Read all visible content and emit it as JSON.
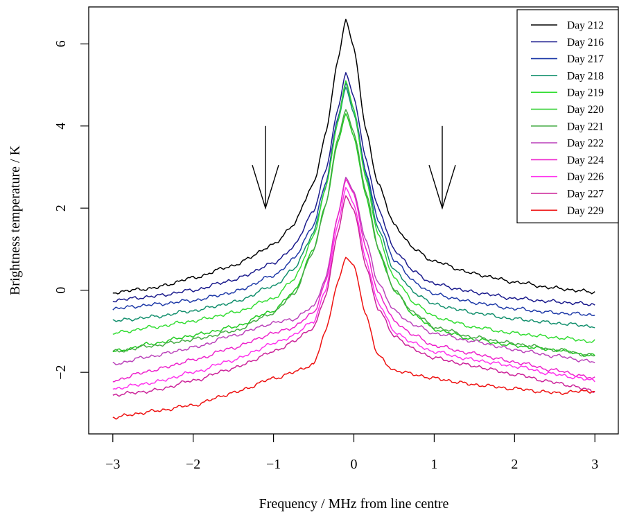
{
  "chart_data": {
    "type": "line",
    "title": "",
    "xlabel": "Frequency / MHz from line centre",
    "ylabel": "Brightness temperature / K",
    "xlim": [
      -3.3,
      3.3
    ],
    "ylim": [
      -3.5,
      6.9
    ],
    "xticks": [
      -3,
      -2,
      -1,
      0,
      1,
      2,
      3
    ],
    "xtick_labels": [
      "−3",
      "−2",
      "−1",
      "0",
      "1",
      "2",
      "3"
    ],
    "yticks": [
      -2,
      0,
      2,
      4,
      6
    ],
    "ytick_labels": [
      "−2",
      "0",
      "2",
      "4",
      "6"
    ],
    "grid": false,
    "legend_position": "top-right",
    "line_center": -0.1,
    "annotations": [
      {
        "type": "arrow",
        "direction": "down",
        "x": -1.1,
        "y_from": 4.0,
        "y_to": 2.0
      },
      {
        "type": "arrow",
        "direction": "down",
        "x": 1.1,
        "y_from": 4.0,
        "y_to": 2.0
      }
    ],
    "series": [
      {
        "name": "Day 212",
        "color": "#000000",
        "x": [
          -3,
          -2.5,
          -2,
          -1.5,
          -1,
          -0.75,
          -0.5,
          -0.35,
          -0.2,
          -0.1,
          0,
          0.15,
          0.3,
          0.5,
          0.75,
          1,
          1.5,
          2,
          2.5,
          3
        ],
        "y": [
          -0.05,
          0.05,
          0.3,
          0.6,
          1.1,
          1.6,
          2.6,
          3.8,
          5.6,
          6.6,
          5.9,
          3.9,
          2.6,
          1.6,
          1.0,
          0.7,
          0.4,
          0.2,
          0.05,
          -0.05
        ]
      },
      {
        "name": "Day 216",
        "color": "#1a1a8c",
        "x": [
          -3,
          -2.5,
          -2,
          -1.5,
          -1,
          -0.75,
          -0.5,
          -0.35,
          -0.2,
          -0.1,
          0,
          0.15,
          0.3,
          0.5,
          0.75,
          1,
          1.5,
          2,
          2.5,
          3
        ],
        "y": [
          -0.25,
          -0.15,
          0.0,
          0.25,
          0.65,
          1.05,
          1.95,
          2.9,
          4.4,
          5.3,
          4.7,
          3.2,
          2.0,
          1.0,
          0.45,
          0.15,
          -0.05,
          -0.2,
          -0.28,
          -0.35
        ]
      },
      {
        "name": "Day 217",
        "color": "#1e3aa8",
        "x": [
          -3,
          -2.5,
          -2,
          -1.5,
          -1,
          -0.75,
          -0.5,
          -0.35,
          -0.2,
          -0.1,
          0,
          0.15,
          0.3,
          0.5,
          0.75,
          1,
          1.5,
          2,
          2.5,
          3
        ],
        "y": [
          -0.45,
          -0.35,
          -0.25,
          -0.05,
          0.35,
          0.75,
          1.6,
          2.6,
          4.2,
          5.05,
          4.4,
          2.9,
          1.7,
          0.75,
          0.2,
          -0.1,
          -0.3,
          -0.45,
          -0.55,
          -0.6
        ]
      },
      {
        "name": "Day 218",
        "color": "#14906e",
        "x": [
          -3,
          -2.5,
          -2,
          -1.5,
          -1,
          -0.75,
          -0.5,
          -0.35,
          -0.2,
          -0.1,
          0,
          0.15,
          0.3,
          0.5,
          0.75,
          1,
          1.5,
          2,
          2.5,
          3
        ],
        "y": [
          -0.75,
          -0.65,
          -0.5,
          -0.3,
          0.1,
          0.5,
          1.4,
          2.5,
          4.1,
          4.95,
          4.3,
          2.8,
          1.5,
          0.5,
          -0.05,
          -0.35,
          -0.55,
          -0.7,
          -0.8,
          -0.88
        ]
      },
      {
        "name": "Day 219",
        "color": "#33dd33",
        "x": [
          -3,
          -2.5,
          -2,
          -1.5,
          -1,
          -0.75,
          -0.5,
          -0.35,
          -0.2,
          -0.1,
          0,
          0.15,
          0.3,
          0.5,
          0.75,
          1,
          1.5,
          2,
          2.5,
          3
        ],
        "y": [
          -1.05,
          -0.9,
          -0.75,
          -0.55,
          -0.2,
          0.25,
          1.3,
          2.5,
          4.1,
          5.1,
          4.4,
          2.7,
          1.35,
          0.3,
          -0.3,
          -0.65,
          -0.9,
          -1.05,
          -1.15,
          -1.25
        ]
      },
      {
        "name": "Day 220",
        "color": "#22cc22",
        "x": [
          -3,
          -2.5,
          -2,
          -1.5,
          -1,
          -0.75,
          -0.5,
          -0.35,
          -0.2,
          -0.1,
          0,
          0.15,
          0.3,
          0.5,
          0.75,
          1,
          1.5,
          2,
          2.5,
          3
        ],
        "y": [
          -1.5,
          -1.3,
          -1.1,
          -0.9,
          -0.5,
          -0.05,
          1.0,
          2.1,
          3.6,
          4.3,
          3.75,
          2.3,
          1.0,
          0.0,
          -0.6,
          -0.95,
          -1.2,
          -1.35,
          -1.45,
          -1.6
        ]
      },
      {
        "name": "Day 221",
        "color": "#44aa44",
        "x": [
          -3,
          -2.5,
          -2,
          -1.5,
          -1,
          -0.75,
          -0.5,
          -0.35,
          -0.2,
          -0.1,
          0,
          0.15,
          0.3,
          0.5,
          0.75,
          1,
          1.5,
          2,
          2.5,
          3
        ],
        "y": [
          -1.5,
          -1.35,
          -1.2,
          -1.0,
          -0.55,
          -0.1,
          0.95,
          2.1,
          3.7,
          4.4,
          3.85,
          2.4,
          1.05,
          0.0,
          -0.55,
          -0.9,
          -1.15,
          -1.3,
          -1.45,
          -1.6
        ]
      },
      {
        "name": "Day 222",
        "color": "#bb44bb",
        "x": [
          -3,
          -2.5,
          -2,
          -1.5,
          -1,
          -0.75,
          -0.5,
          -0.35,
          -0.2,
          -0.1,
          0,
          0.15,
          0.3,
          0.5,
          0.75,
          1,
          1.5,
          2,
          2.5,
          3
        ],
        "y": [
          -1.8,
          -1.6,
          -1.4,
          -1.1,
          -0.8,
          -0.7,
          -0.4,
          0.3,
          1.8,
          2.75,
          2.4,
          1.2,
          0.2,
          -0.5,
          -0.85,
          -1.05,
          -1.25,
          -1.45,
          -1.6,
          -1.75
        ]
      },
      {
        "name": "Day 224",
        "color": "#ee22cc",
        "x": [
          -3,
          -2.5,
          -2,
          -1.5,
          -1,
          -0.75,
          -0.5,
          -0.35,
          -0.2,
          -0.1,
          0,
          0.15,
          0.3,
          0.5,
          0.75,
          1,
          1.5,
          2,
          2.5,
          3
        ],
        "y": [
          -2.2,
          -1.95,
          -1.7,
          -1.4,
          -1.05,
          -0.9,
          -0.55,
          0.2,
          1.8,
          2.7,
          2.35,
          1.0,
          -0.05,
          -0.75,
          -1.1,
          -1.35,
          -1.55,
          -1.75,
          -1.95,
          -2.15
        ]
      },
      {
        "name": "Day 226",
        "color": "#ff33ee",
        "x": [
          -3,
          -2.5,
          -2,
          -1.5,
          -1,
          -0.75,
          -0.5,
          -0.35,
          -0.2,
          -0.1,
          0,
          0.15,
          0.3,
          0.5,
          0.75,
          1,
          1.5,
          2,
          2.5,
          3
        ],
        "y": [
          -2.4,
          -2.25,
          -2.0,
          -1.7,
          -1.3,
          -1.1,
          -0.75,
          0.0,
          1.6,
          2.5,
          2.1,
          0.75,
          -0.3,
          -1.0,
          -1.3,
          -1.5,
          -1.7,
          -1.85,
          -2.05,
          -2.2
        ]
      },
      {
        "name": "Day 227",
        "color": "#cc2299",
        "x": [
          -3,
          -2.5,
          -2,
          -1.5,
          -1,
          -0.75,
          -0.5,
          -0.35,
          -0.2,
          -0.1,
          0,
          0.15,
          0.3,
          0.5,
          0.75,
          1,
          1.5,
          2,
          2.5,
          3
        ],
        "y": [
          -2.55,
          -2.45,
          -2.2,
          -1.9,
          -1.5,
          -1.25,
          -0.9,
          -0.15,
          1.4,
          2.3,
          1.95,
          0.6,
          -0.45,
          -1.1,
          -1.45,
          -1.65,
          -1.85,
          -2.05,
          -2.25,
          -2.45
        ]
      },
      {
        "name": "Day 229",
        "color": "#ee1111",
        "x": [
          -3,
          -2.5,
          -2,
          -1.5,
          -1,
          -0.75,
          -0.5,
          -0.35,
          -0.2,
          -0.1,
          0,
          0.15,
          0.3,
          0.5,
          0.75,
          1,
          1.5,
          2,
          2.5,
          3
        ],
        "y": [
          -3.1,
          -2.95,
          -2.8,
          -2.5,
          -2.15,
          -2.0,
          -1.8,
          -1.0,
          0.2,
          0.8,
          0.6,
          -0.6,
          -1.6,
          -1.95,
          -2.05,
          -2.15,
          -2.3,
          -2.4,
          -2.5,
          -2.45
        ]
      }
    ]
  }
}
